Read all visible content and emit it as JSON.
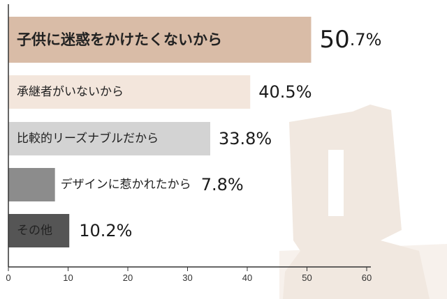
{
  "chart_data": {
    "type": "bar",
    "orientation": "horizontal",
    "categories": [
      "子供に迷惑をかけたくないから",
      "承継者がいないから",
      "比較的リーズナブルだから",
      "デザインに惹かれたから",
      "その他"
    ],
    "values": [
      50.7,
      40.5,
      33.8,
      7.8,
      10.2
    ],
    "value_labels": [
      {
        "main": "50",
        "suffix": ".7%"
      },
      {
        "main": "40.5%",
        "suffix": ""
      },
      {
        "main": "33.8%",
        "suffix": ""
      },
      {
        "main": "7.8%",
        "suffix": ""
      },
      {
        "main": "10.2%",
        "suffix": ""
      }
    ],
    "xlim": [
      0,
      60
    ],
    "xticks": [
      "0",
      "10",
      "20",
      "30",
      "40",
      "50",
      "60"
    ],
    "colors": [
      "#d9bca7",
      "#f3e6dc",
      "#d3d3d3",
      "#8c8c8c",
      "#555555"
    ],
    "label_colors": [
      "#222222",
      "#222222",
      "#222222",
      "#222222",
      "#ffffff"
    ],
    "decoration_color": "#f1e8e0",
    "grid": false,
    "legend": "none"
  }
}
